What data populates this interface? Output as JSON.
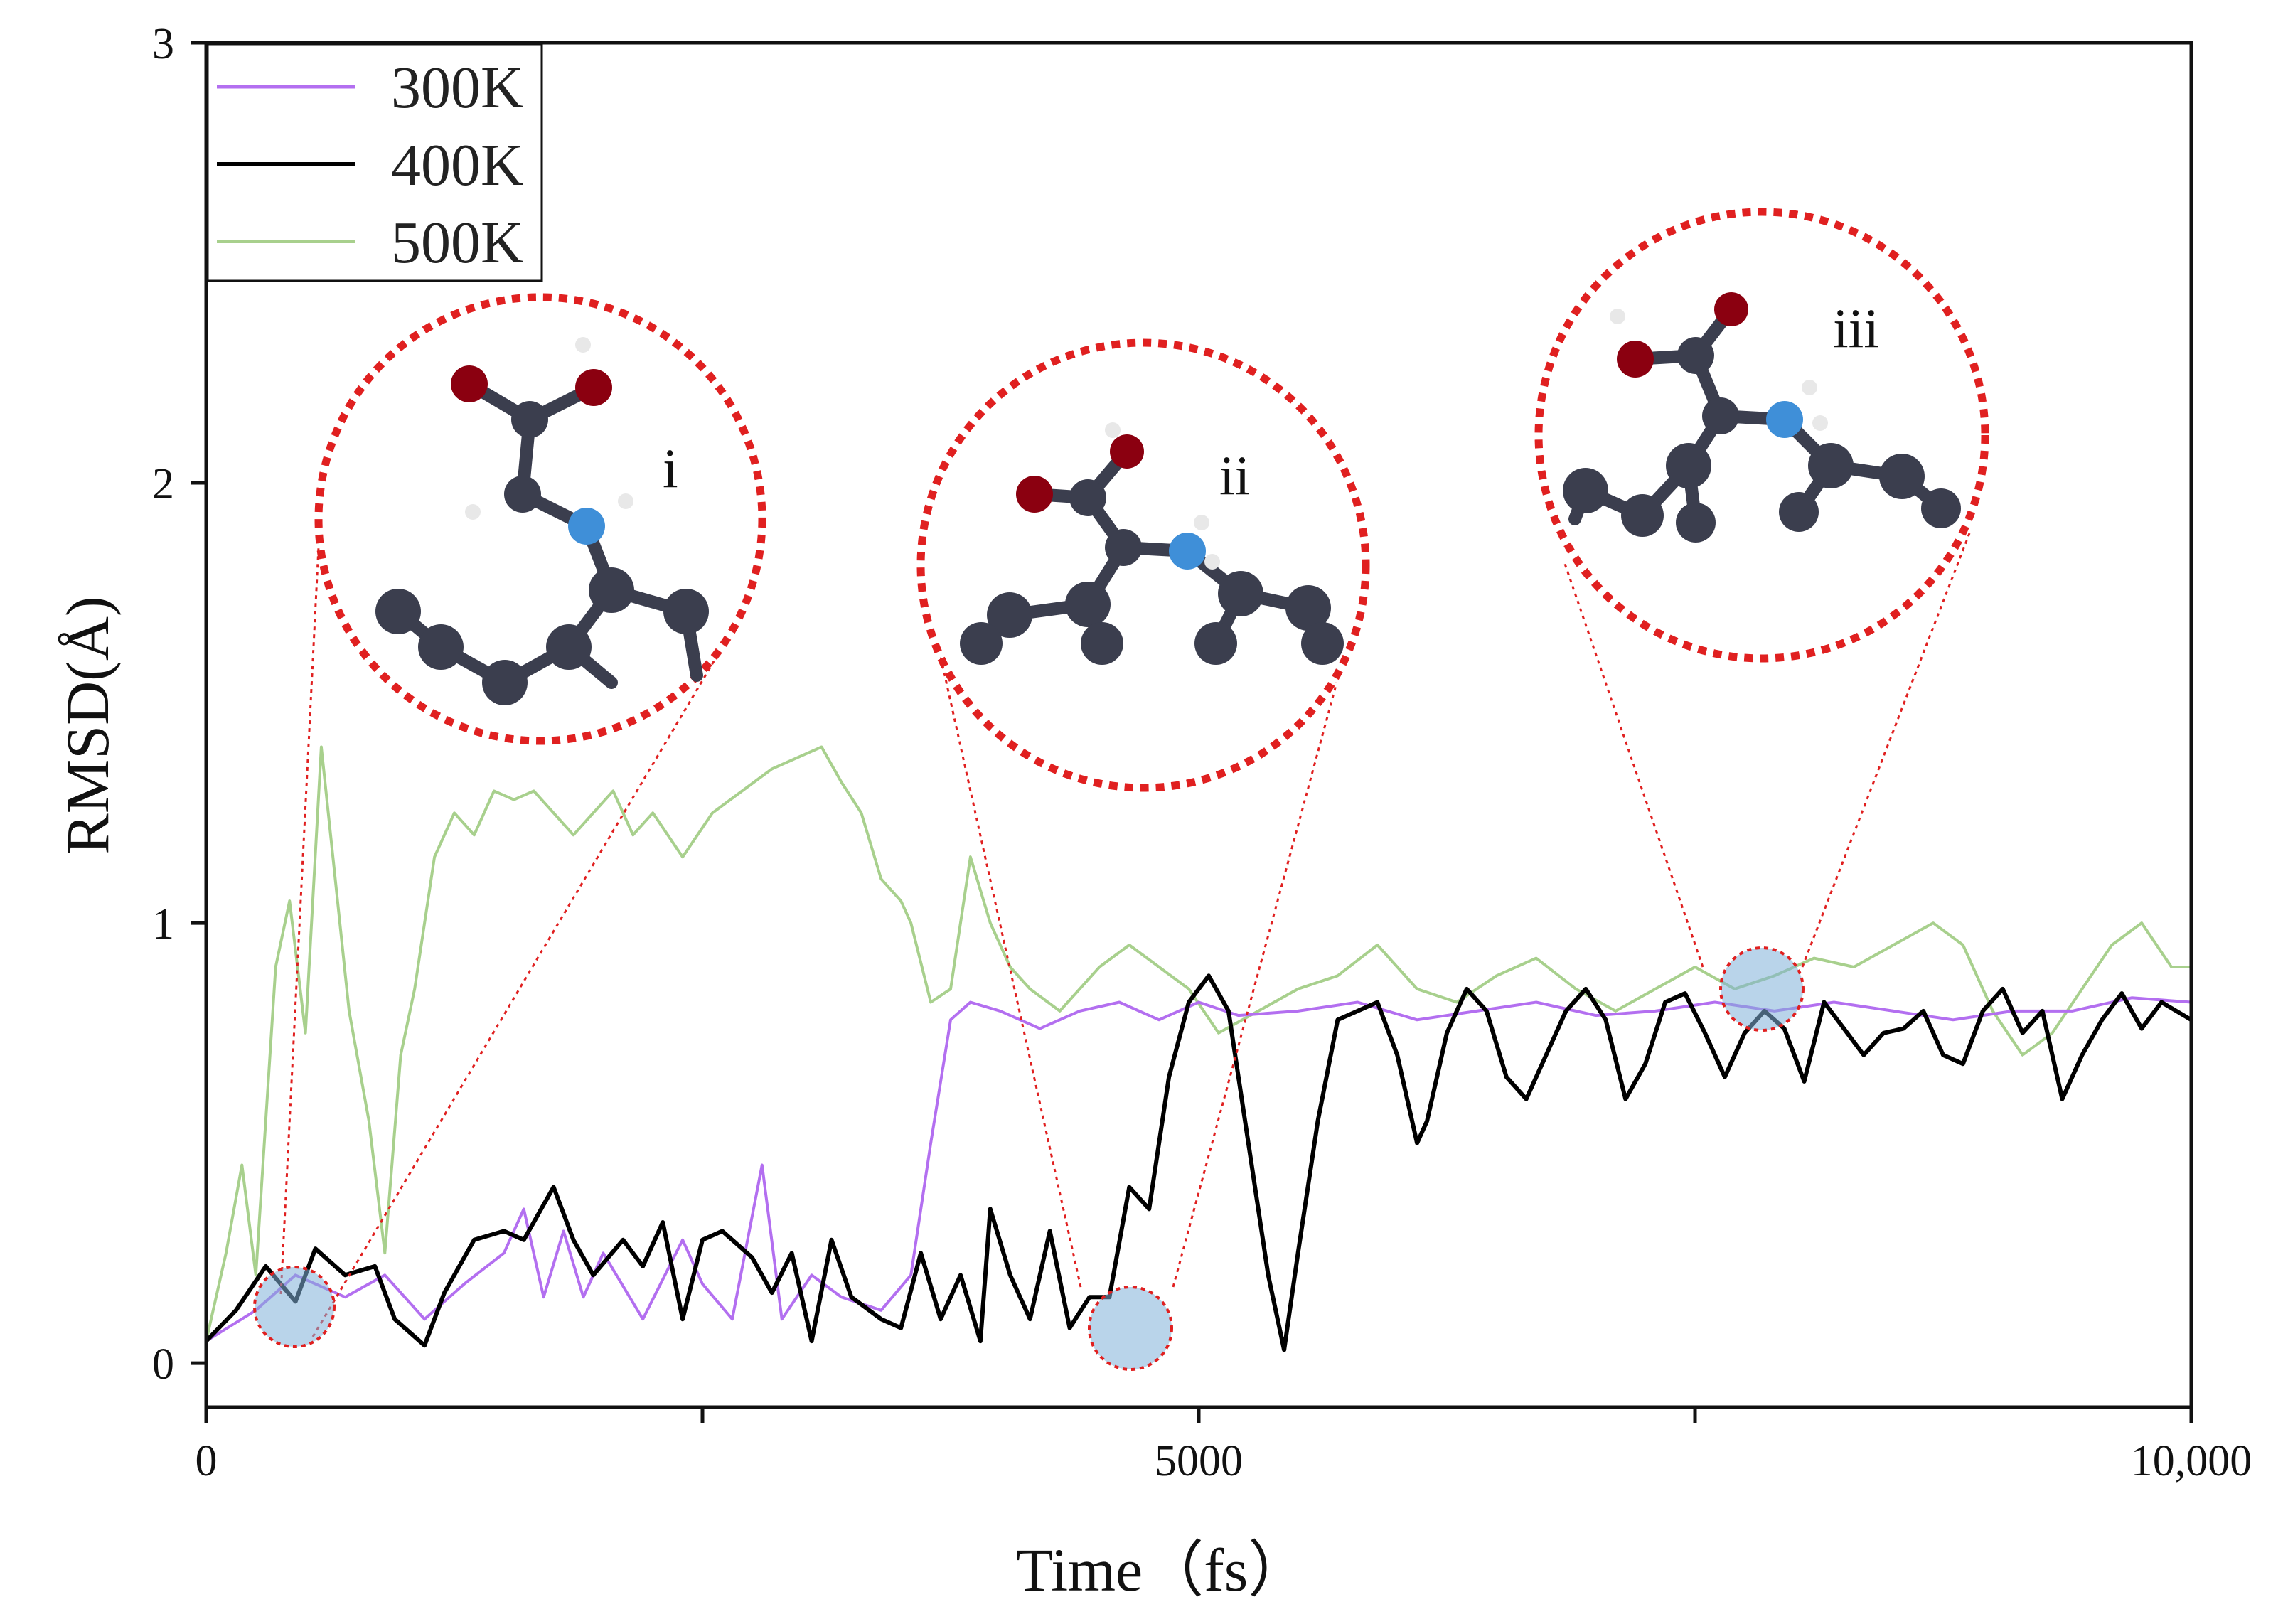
{
  "chart_data": {
    "type": "line",
    "title": "",
    "xlabel": "Time（fs）",
    "ylabel": "RMSD(Å)",
    "xlim": [
      0,
      10000
    ],
    "ylim": [
      -0.1,
      3
    ],
    "x_ticks": [
      {
        "value": 0,
        "label": "0"
      },
      {
        "value": 2500,
        "label": ""
      },
      {
        "value": 5000,
        "label": "5000"
      },
      {
        "value": 7500,
        "label": ""
      },
      {
        "value": 10000,
        "label": "10,000"
      }
    ],
    "y_ticks": [
      {
        "value": 0,
        "label": "0"
      },
      {
        "value": 1,
        "label": "1"
      },
      {
        "value": 2,
        "label": "2"
      },
      {
        "value": 3,
        "label": "3"
      }
    ],
    "grid": false,
    "legend_position": "top-left",
    "series": [
      {
        "name": "300K",
        "color": "#b36ff0",
        "points": [
          [
            0,
            0.05
          ],
          [
            250,
            0.12
          ],
          [
            450,
            0.2
          ],
          [
            700,
            0.15
          ],
          [
            900,
            0.2
          ],
          [
            1100,
            0.1
          ],
          [
            1300,
            0.18
          ],
          [
            1500,
            0.25
          ],
          [
            1600,
            0.35
          ],
          [
            1700,
            0.15
          ],
          [
            1800,
            0.3
          ],
          [
            1900,
            0.15
          ],
          [
            2000,
            0.25
          ],
          [
            2200,
            0.1
          ],
          [
            2400,
            0.28
          ],
          [
            2500,
            0.18
          ],
          [
            2650,
            0.1
          ],
          [
            2800,
            0.45
          ],
          [
            2900,
            0.1
          ],
          [
            3050,
            0.2
          ],
          [
            3200,
            0.15
          ],
          [
            3400,
            0.12
          ],
          [
            3550,
            0.2
          ],
          [
            3650,
            0.5
          ],
          [
            3750,
            0.78
          ],
          [
            3850,
            0.82
          ],
          [
            4000,
            0.8
          ],
          [
            4200,
            0.76
          ],
          [
            4400,
            0.8
          ],
          [
            4600,
            0.82
          ],
          [
            4800,
            0.78
          ],
          [
            5000,
            0.82
          ],
          [
            5200,
            0.79
          ],
          [
            5500,
            0.8
          ],
          [
            5800,
            0.82
          ],
          [
            6100,
            0.78
          ],
          [
            6400,
            0.8
          ],
          [
            6700,
            0.82
          ],
          [
            7000,
            0.79
          ],
          [
            7300,
            0.8
          ],
          [
            7600,
            0.82
          ],
          [
            7900,
            0.8
          ],
          [
            8200,
            0.82
          ],
          [
            8500,
            0.8
          ],
          [
            8800,
            0.78
          ],
          [
            9100,
            0.8
          ],
          [
            9400,
            0.8
          ],
          [
            9700,
            0.83
          ],
          [
            10000,
            0.82
          ]
        ]
      },
      {
        "name": "400K",
        "color": "#000000",
        "points": [
          [
            0,
            0.05
          ],
          [
            150,
            0.12
          ],
          [
            300,
            0.22
          ],
          [
            450,
            0.14
          ],
          [
            550,
            0.26
          ],
          [
            700,
            0.2
          ],
          [
            850,
            0.22
          ],
          [
            950,
            0.1
          ],
          [
            1100,
            0.04
          ],
          [
            1200,
            0.16
          ],
          [
            1350,
            0.28
          ],
          [
            1500,
            0.3
          ],
          [
            1600,
            0.28
          ],
          [
            1750,
            0.4
          ],
          [
            1850,
            0.28
          ],
          [
            1950,
            0.2
          ],
          [
            2100,
            0.28
          ],
          [
            2200,
            0.22
          ],
          [
            2300,
            0.32
          ],
          [
            2400,
            0.1
          ],
          [
            2500,
            0.28
          ],
          [
            2600,
            0.3
          ],
          [
            2750,
            0.24
          ],
          [
            2850,
            0.16
          ],
          [
            2950,
            0.25
          ],
          [
            3050,
            0.05
          ],
          [
            3150,
            0.28
          ],
          [
            3250,
            0.15
          ],
          [
            3400,
            0.1
          ],
          [
            3500,
            0.08
          ],
          [
            3600,
            0.25
          ],
          [
            3700,
            0.1
          ],
          [
            3800,
            0.2
          ],
          [
            3900,
            0.05
          ],
          [
            3950,
            0.35
          ],
          [
            4050,
            0.2
          ],
          [
            4150,
            0.1
          ],
          [
            4250,
            0.3
          ],
          [
            4350,
            0.08
          ],
          [
            4450,
            0.15
          ],
          [
            4550,
            0.15
          ],
          [
            4650,
            0.4
          ],
          [
            4750,
            0.35
          ],
          [
            4850,
            0.65
          ],
          [
            4950,
            0.82
          ],
          [
            5050,
            0.88
          ],
          [
            5150,
            0.8
          ],
          [
            5250,
            0.5
          ],
          [
            5350,
            0.2
          ],
          [
            5430,
            0.03
          ],
          [
            5500,
            0.25
          ],
          [
            5600,
            0.55
          ],
          [
            5700,
            0.78
          ],
          [
            5800,
            0.8
          ],
          [
            5900,
            0.82
          ],
          [
            6000,
            0.7
          ],
          [
            6100,
            0.5
          ],
          [
            6150,
            0.55
          ],
          [
            6250,
            0.75
          ],
          [
            6350,
            0.85
          ],
          [
            6450,
            0.8
          ],
          [
            6550,
            0.65
          ],
          [
            6650,
            0.6
          ],
          [
            6750,
            0.7
          ],
          [
            6850,
            0.8
          ],
          [
            6950,
            0.85
          ],
          [
            7050,
            0.78
          ],
          [
            7150,
            0.6
          ],
          [
            7250,
            0.68
          ],
          [
            7350,
            0.82
          ],
          [
            7450,
            0.84
          ],
          [
            7550,
            0.75
          ],
          [
            7650,
            0.65
          ],
          [
            7750,
            0.75
          ],
          [
            7850,
            0.8
          ],
          [
            7950,
            0.76
          ],
          [
            8050,
            0.64
          ],
          [
            8150,
            0.82
          ],
          [
            8250,
            0.76
          ],
          [
            8350,
            0.7
          ],
          [
            8450,
            0.75
          ],
          [
            8550,
            0.76
          ],
          [
            8650,
            0.8
          ],
          [
            8750,
            0.7
          ],
          [
            8850,
            0.68
          ],
          [
            8950,
            0.8
          ],
          [
            9050,
            0.85
          ],
          [
            9150,
            0.75
          ],
          [
            9250,
            0.8
          ],
          [
            9350,
            0.6
          ],
          [
            9450,
            0.7
          ],
          [
            9550,
            0.78
          ],
          [
            9650,
            0.84
          ],
          [
            9750,
            0.76
          ],
          [
            9850,
            0.82
          ],
          [
            10000,
            0.78
          ]
        ]
      },
      {
        "name": "500K",
        "color": "#a8d08d",
        "points": [
          [
            0,
            0.05
          ],
          [
            100,
            0.25
          ],
          [
            180,
            0.45
          ],
          [
            250,
            0.2
          ],
          [
            350,
            0.9
          ],
          [
            420,
            1.05
          ],
          [
            500,
            0.75
          ],
          [
            580,
            1.4
          ],
          [
            650,
            1.1
          ],
          [
            720,
            0.8
          ],
          [
            820,
            0.55
          ],
          [
            900,
            0.25
          ],
          [
            980,
            0.7
          ],
          [
            1050,
            0.85
          ],
          [
            1150,
            1.15
          ],
          [
            1250,
            1.25
          ],
          [
            1350,
            1.2
          ],
          [
            1450,
            1.3
          ],
          [
            1550,
            1.28
          ],
          [
            1650,
            1.3
          ],
          [
            1750,
            1.25
          ],
          [
            1850,
            1.2
          ],
          [
            1950,
            1.25
          ],
          [
            2050,
            1.3
          ],
          [
            2150,
            1.2
          ],
          [
            2250,
            1.25
          ],
          [
            2400,
            1.15
          ],
          [
            2550,
            1.25
          ],
          [
            2700,
            1.3
          ],
          [
            2850,
            1.35
          ],
          [
            3000,
            1.38
          ],
          [
            3100,
            1.4
          ],
          [
            3200,
            1.32
          ],
          [
            3300,
            1.25
          ],
          [
            3400,
            1.1
          ],
          [
            3500,
            1.05
          ],
          [
            3550,
            1.0
          ],
          [
            3650,
            0.82
          ],
          [
            3750,
            0.85
          ],
          [
            3850,
            1.15
          ],
          [
            3950,
            1.0
          ],
          [
            4050,
            0.9
          ],
          [
            4150,
            0.85
          ],
          [
            4300,
            0.8
          ],
          [
            4500,
            0.9
          ],
          [
            4650,
            0.95
          ],
          [
            4800,
            0.9
          ],
          [
            4950,
            0.85
          ],
          [
            5100,
            0.75
          ],
          [
            5300,
            0.8
          ],
          [
            5500,
            0.85
          ],
          [
            5700,
            0.88
          ],
          [
            5900,
            0.95
          ],
          [
            6100,
            0.85
          ],
          [
            6300,
            0.82
          ],
          [
            6500,
            0.88
          ],
          [
            6700,
            0.92
          ],
          [
            6900,
            0.85
          ],
          [
            7100,
            0.8
          ],
          [
            7300,
            0.85
          ],
          [
            7500,
            0.9
          ],
          [
            7700,
            0.85
          ],
          [
            7900,
            0.88
          ],
          [
            8100,
            0.92
          ],
          [
            8300,
            0.9
          ],
          [
            8500,
            0.95
          ],
          [
            8700,
            1.0
          ],
          [
            8850,
            0.95
          ],
          [
            9000,
            0.8
          ],
          [
            9150,
            0.7
          ],
          [
            9300,
            0.75
          ],
          [
            9450,
            0.85
          ],
          [
            9600,
            0.95
          ],
          [
            9750,
            1.0
          ],
          [
            9900,
            0.9
          ],
          [
            10000,
            0.9
          ]
        ]
      }
    ],
    "annotations": [
      {
        "label": "i",
        "time": 450,
        "rmsd": 0.12
      },
      {
        "label": "ii",
        "time": 4800,
        "rmsd": 0.06
      },
      {
        "label": "iii",
        "time": 7970,
        "rmsd": 0.84
      }
    ]
  }
}
